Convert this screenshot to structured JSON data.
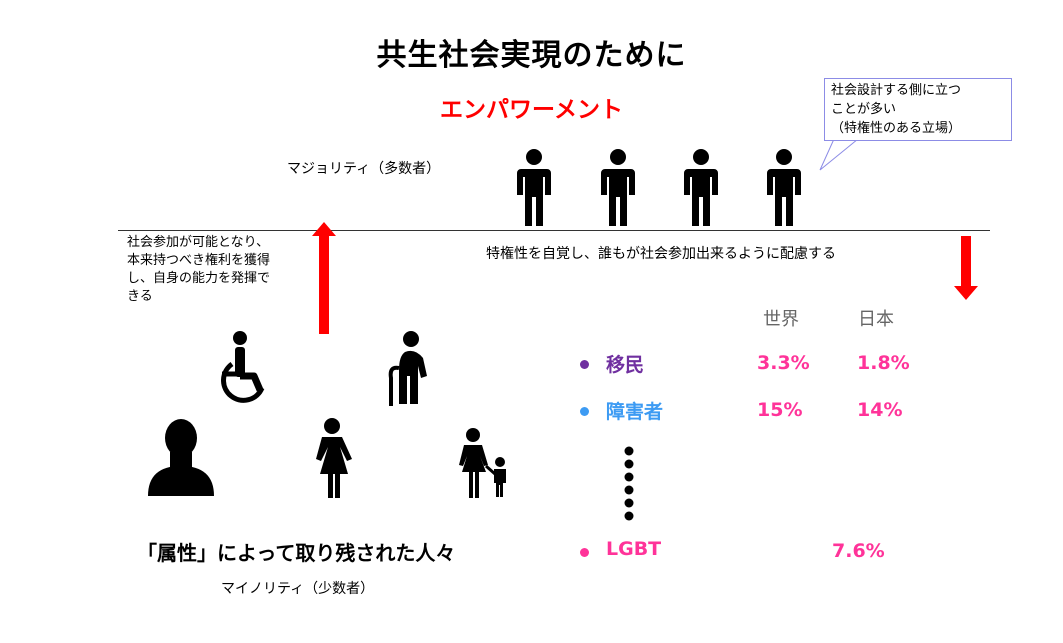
{
  "title": "共生社会実現のために",
  "subtitle": "エンパワーメント",
  "majority_label": "マジョリティ（多数者）",
  "callout": {
    "line1": "社会設計する側に立つ",
    "line2": "ことが多い",
    "line3": "（特権性のある立場）"
  },
  "awareness_text": "特権性を自覚し、誰もが社会参加出来るように配慮する",
  "empower_note": {
    "line1": "社会参加が可能となり、",
    "line2": "本来持つべき権利を獲得",
    "line3": "し、自身の能力を発揮で",
    "line4": "きる"
  },
  "table": {
    "col_world": "世界",
    "col_japan": "日本",
    "rows": [
      {
        "label": "移民",
        "world": "3.3%",
        "japan": "1.8%",
        "dot_color": "#7030a0",
        "label_color": "#7030a0"
      },
      {
        "label": "障害者",
        "world": "15%",
        "japan": "14%",
        "dot_color": "#3d9bf3",
        "label_color": "#3d9bf3"
      },
      {
        "label": "LGBT",
        "value": "7.6%",
        "dot_color": "#ff3399",
        "label_color": "#ff3399"
      }
    ]
  },
  "left_behind_text": "「属性」によって取り残された人々",
  "minority_label": "マイノリティ（少数者）",
  "icons": [
    "person-icon",
    "wheelchair-icon",
    "elderly-icon",
    "user-icon",
    "woman-icon",
    "parent-child-icon"
  ],
  "colors": {
    "accent_red": "#ff0000",
    "value_pink": "#ff3399"
  }
}
